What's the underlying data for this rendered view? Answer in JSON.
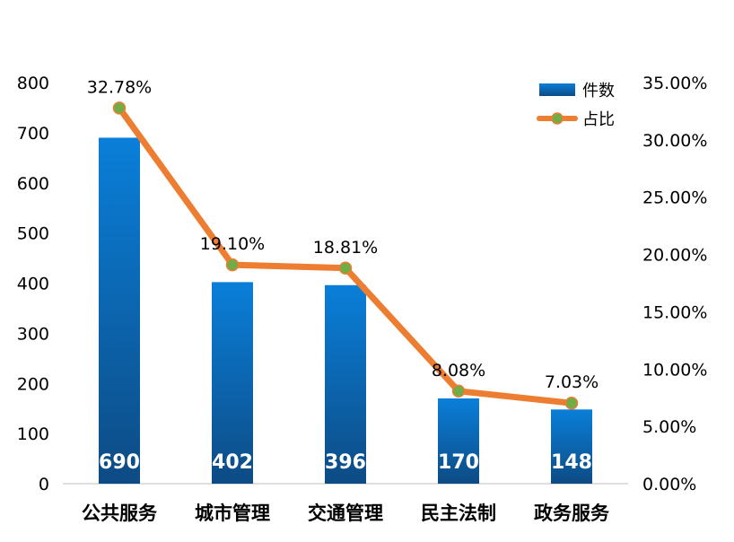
{
  "chart_data": {
    "type": "bar",
    "categories": [
      "公共服务",
      "城市管理",
      "交通管理",
      "民主法制",
      "政务服务"
    ],
    "series": [
      {
        "name": "件数",
        "type": "bar",
        "axis": "left",
        "values": [
          690,
          402,
          396,
          170,
          148
        ],
        "labels": [
          "690",
          "402",
          "396",
          "170",
          "148"
        ]
      },
      {
        "name": "占比",
        "type": "line",
        "axis": "right",
        "values": [
          32.78,
          19.1,
          18.81,
          8.08,
          7.03
        ],
        "labels": [
          "32.78%",
          "19.10%",
          "18.81%",
          "8.08%",
          "7.03%"
        ]
      }
    ],
    "ylim": [
      0,
      800
    ],
    "y2lim": [
      0,
      35
    ],
    "yticks": [
      "0",
      "100",
      "200",
      "300",
      "400",
      "500",
      "600",
      "700",
      "800"
    ],
    "y2ticks": [
      "0.00%",
      "5.00%",
      "10.00%",
      "15.00%",
      "20.00%",
      "25.00%",
      "30.00%",
      "35.00%"
    ],
    "legend_position": "top-right",
    "grid": false,
    "colors": {
      "bar_top": "#0a7fd9",
      "bar_bottom": "#0d4b84",
      "line": "#ed7d31",
      "marker": "#70ad47"
    }
  }
}
